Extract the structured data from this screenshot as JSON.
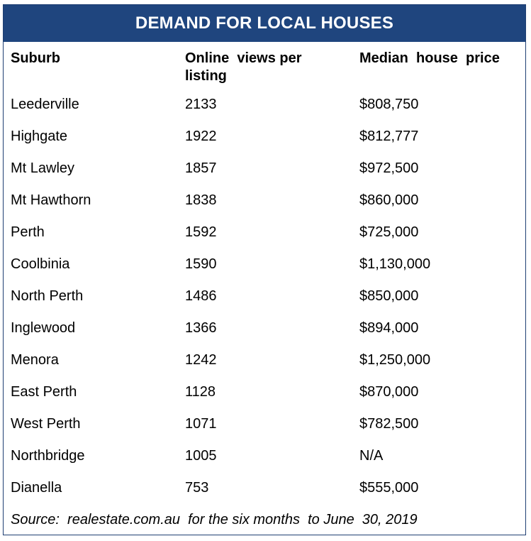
{
  "title": "DEMAND FOR LOCAL HOUSES",
  "headers": {
    "suburb": "Suburb",
    "views": "Online  views per listing",
    "price": "Median  house  price"
  },
  "rows": [
    {
      "suburb": "Leederville",
      "views": "2133",
      "price": "$808,750"
    },
    {
      "suburb": "Highgate",
      "views": "1922",
      "price": "$812,777"
    },
    {
      "suburb": "Mt Lawley",
      "views": "1857",
      "price": "$972,500"
    },
    {
      "suburb": "Mt Hawthorn",
      "views": "1838",
      "price": "$860,000"
    },
    {
      "suburb": "Perth",
      "views": "1592",
      "price": "$725,000"
    },
    {
      "suburb": "Coolbinia",
      "views": "1590",
      "price": "$1,130,000"
    },
    {
      "suburb": "North Perth",
      "views": "1486",
      "price": "$850,000"
    },
    {
      "suburb": "Inglewood",
      "views": "1366",
      "price": "$894,000"
    },
    {
      "suburb": "Menora",
      "views": "1242",
      "price": "$1,250,000"
    },
    {
      "suburb": "East Perth",
      "views": "1128",
      "price": "$870,000"
    },
    {
      "suburb": "West Perth",
      "views": "1071",
      "price": "$782,500"
    },
    {
      "suburb": "Northbridge",
      "views": "1005",
      "price": "N/A"
    },
    {
      "suburb": "Dianella",
      "views": "753",
      "price": "$555,000"
    }
  ],
  "source": "Source:  realestate.com.au  for the six months  to June  30, 2019",
  "colors": {
    "title_bg": "#1f457e",
    "title_text": "#ffffff",
    "border": "#1f3f73"
  }
}
